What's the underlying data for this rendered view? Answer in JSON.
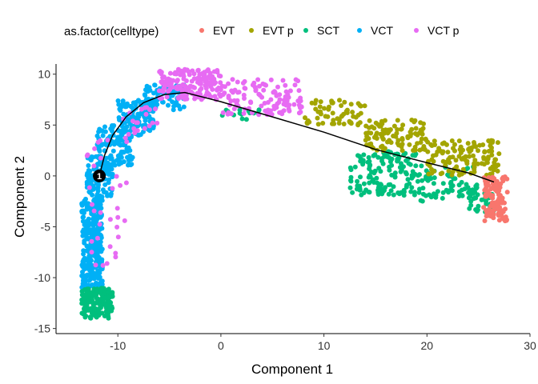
{
  "chart_data": {
    "type": "scatter",
    "title": "",
    "xlabel": "Component 1",
    "ylabel": "Component 2",
    "xlim": [
      -16,
      30
    ],
    "ylim": [
      -15.5,
      11
    ],
    "x_ticks": [
      -10,
      0,
      10,
      20,
      30
    ],
    "y_ticks": [
      -15,
      -10,
      -5,
      0,
      5,
      10
    ],
    "x_tick_labels": [
      "-10",
      "0",
      "10",
      "20",
      "30"
    ],
    "y_tick_labels": [
      "-15",
      "-10",
      "-5",
      "0",
      "5",
      "10"
    ],
    "grid": false,
    "legend": {
      "title": "as.factor(celltype)",
      "position": "top",
      "entries": [
        "EVT",
        "EVT p",
        "SCT",
        "VCT",
        "VCT p"
      ]
    },
    "colors": {
      "EVT": "#F8766D",
      "EVT p": "#A3A500",
      "SCT": "#00BF7D",
      "VCT": "#00B0F6",
      "VCT p": "#E76BF3"
    },
    "series": [
      {
        "name": "VCT",
        "color": "#00B0F6",
        "regions": [
          {
            "x": [
              -13.5,
              -11.5
            ],
            "y": [
              -11,
              -2
            ],
            "n": 320
          },
          {
            "x": [
              -13,
              -10.5
            ],
            "y": [
              -2,
              2
            ],
            "n": 110
          },
          {
            "x": [
              -12,
              -8.5
            ],
            "y": [
              1,
              5
            ],
            "n": 120
          },
          {
            "x": [
              -10,
              -6.5
            ],
            "y": [
              4,
              7.5
            ],
            "n": 110
          },
          {
            "x": [
              -7.5,
              -3.5
            ],
            "y": [
              6.5,
              9
            ],
            "n": 90
          }
        ]
      },
      {
        "name": "SCT",
        "color": "#00BF7D",
        "regions": [
          {
            "x": [
              -13.5,
              -10.5
            ],
            "y": [
              -14,
              -11
            ],
            "n": 160
          },
          {
            "x": [
              12.5,
              19
            ],
            "y": [
              -2,
              2.5
            ],
            "n": 140
          },
          {
            "x": [
              19,
              25
            ],
            "y": [
              -2.5,
              1
            ],
            "n": 70
          },
          {
            "x": [
              24,
              26.5
            ],
            "y": [
              -4,
              -1
            ],
            "n": 35
          },
          {
            "x": [
              0,
              4
            ],
            "y": [
              5.5,
              6.5
            ],
            "n": 15
          }
        ]
      },
      {
        "name": "VCT p",
        "color": "#E76BF3",
        "regions": [
          {
            "x": [
              -6,
              0
            ],
            "y": [
              7.5,
              10.5
            ],
            "n": 170
          },
          {
            "x": [
              0,
              8
            ],
            "y": [
              6,
              9.5
            ],
            "n": 110
          },
          {
            "x": [
              -13,
              -9
            ],
            "y": [
              -9,
              4
            ],
            "n": 35
          },
          {
            "x": [
              -10,
              -6
            ],
            "y": [
              4,
              7
            ],
            "n": 20
          }
        ]
      },
      {
        "name": "EVT p",
        "color": "#A3A500",
        "regions": [
          {
            "x": [
              8,
              14
            ],
            "y": [
              5,
              7.5
            ],
            "n": 60
          },
          {
            "x": [
              14,
              20
            ],
            "y": [
              2.5,
              5.5
            ],
            "n": 100
          },
          {
            "x": [
              20,
              27
            ],
            "y": [
              0,
              3.5
            ],
            "n": 120
          }
        ]
      },
      {
        "name": "EVT",
        "color": "#F8766D",
        "regions": [
          {
            "x": [
              25.5,
              27.8
            ],
            "y": [
              -4.5,
              0
            ],
            "n": 110
          }
        ]
      }
    ],
    "trajectory": {
      "color": "#000000",
      "x": [
        -11.8,
        -11.3,
        -10.5,
        -9.2,
        -7.5,
        -5.5,
        -3.5,
        0,
        5,
        10,
        15,
        20,
        24,
        26.5
      ],
      "y": [
        0,
        2,
        4,
        5.8,
        7.2,
        8.0,
        8.2,
        7.3,
        5.8,
        4.3,
        2.6,
        1.3,
        0.3,
        -0.6
      ]
    },
    "branch_point": {
      "x": -11.8,
      "y": 0,
      "label": "1"
    }
  }
}
